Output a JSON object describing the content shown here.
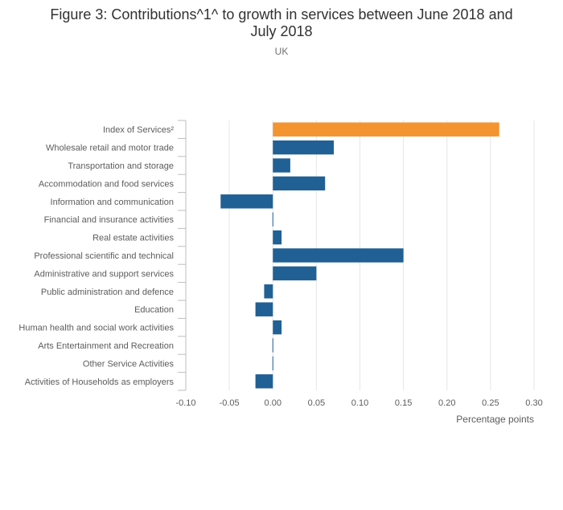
{
  "chart_data": {
    "type": "bar",
    "orientation": "horizontal",
    "title_line1": "Figure 3: Contributions^1^ to growth in services between June 2018 and",
    "title_line2": "July 2018",
    "subtitle": "UK",
    "xlabel": "Percentage points",
    "xlim": [
      -0.1,
      0.3
    ],
    "xticks": [
      "-0.10",
      "-0.05",
      "0.00",
      "0.05",
      "0.10",
      "0.15",
      "0.20",
      "0.25",
      "0.30"
    ],
    "categories": [
      "Index of Services²",
      "Wholesale retail and motor trade",
      "Transportation and storage",
      "Accommodation and food services",
      "Information and communication",
      "Financial and insurance activities",
      "Real estate activities",
      "Professional scientific and technical",
      "Administrative and support services",
      "Public administration and defence",
      "Education",
      "Human health and social work activities",
      "Arts Entertainment and Recreation",
      "Other Service Activities",
      "Activities of Households as employers"
    ],
    "values": [
      0.26,
      0.07,
      0.02,
      0.06,
      -0.06,
      0.0,
      0.01,
      0.15,
      0.05,
      -0.01,
      -0.02,
      0.01,
      0.0,
      0.0,
      -0.02
    ],
    "highlight_index": 0,
    "colors": {
      "highlight": "#f39431",
      "default": "#206095",
      "grid": "#e6e6e6",
      "axis": "#bebebe"
    },
    "grid": "vertical"
  }
}
